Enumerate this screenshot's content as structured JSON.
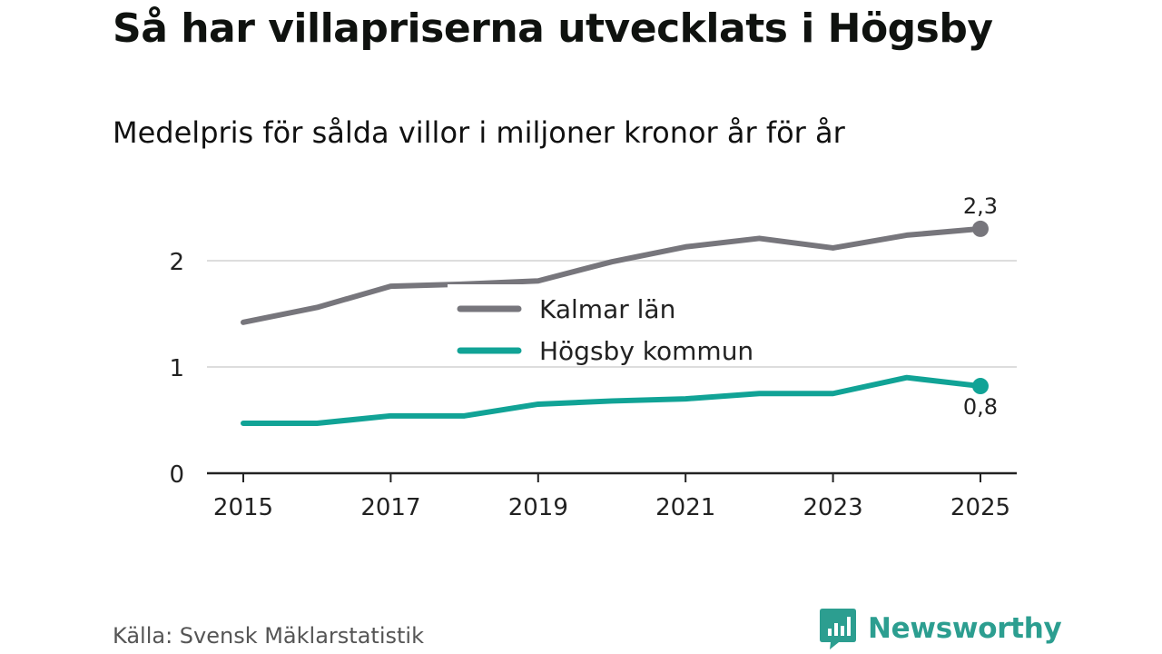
{
  "chart_data": {
    "type": "line",
    "title": "Så har villapriserna utvecklats i Högsby",
    "subtitle": "Medelpris för sålda villor i miljoner kronor år för år",
    "x": [
      2015,
      2016,
      2017,
      2018,
      2019,
      2020,
      2021,
      2022,
      2023,
      2024,
      2025
    ],
    "x_tick_labels": [
      "2015",
      "2017",
      "2019",
      "2021",
      "2023",
      "2025"
    ],
    "y_tick_labels": [
      "0",
      "1",
      "2"
    ],
    "ylim": [
      0,
      2.6
    ],
    "series": [
      {
        "name": "Kalmar län",
        "color": "#77767c",
        "values": [
          1.42,
          1.56,
          1.76,
          1.78,
          1.81,
          1.99,
          2.13,
          2.21,
          2.12,
          2.24,
          2.3
        ],
        "end_label": "2,3"
      },
      {
        "name": "Högsby kommun",
        "color": "#11a396",
        "values": [
          0.47,
          0.47,
          0.54,
          0.54,
          0.65,
          0.68,
          0.7,
          0.75,
          0.75,
          0.9,
          0.82
        ],
        "end_label": "0,8"
      }
    ],
    "grid": true,
    "legend_position": "center"
  },
  "source": "Källa: Svensk Mäklarstatistik",
  "brand": "Newsworthy",
  "brand_color": "#2c9e90"
}
